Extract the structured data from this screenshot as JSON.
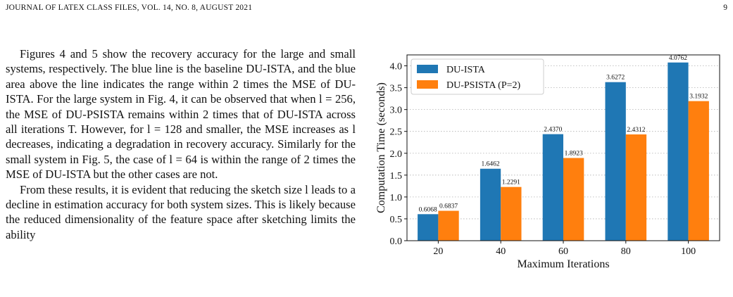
{
  "header": {
    "journal": "JOURNAL OF LATEX CLASS FILES, VOL. 14, NO. 8, AUGUST 2021",
    "page_number": "9"
  },
  "body": {
    "paragraph_1": "Figures 4 and 5 show the recovery accuracy for the large and small systems, respectively. The blue line is the baseline DU-ISTA, and the blue area above the line indicates the range within 2 times the MSE of DU-ISTA. For the large system in Fig. 4, it can be observed that when l = 256, the MSE of DU-PSISTA remains within 2 times that of DU-ISTA across all iterations T. However, for l = 128 and smaller, the MSE increases as l decreases, indicating a degradation in recovery accuracy. Similarly for the small system in Fig. 5, the case of l = 64 is within the range of 2 times the MSE of DU-ISTA but the other cases are not.",
    "paragraph_2": "From these results, it is evident that reducing the sketch size l leads to a decline in estimation accuracy for both system sizes. This is likely because the reduced dimensionality of the feature space after sketching limits the ability"
  },
  "chart_data": {
    "type": "bar",
    "categories": [
      "20",
      "40",
      "60",
      "80",
      "100"
    ],
    "series": [
      {
        "name": "DU-ISTA",
        "values": [
          0.6068,
          1.6462,
          2.437,
          3.6272,
          4.0762
        ],
        "labels": [
          "0.6068",
          "1.6462",
          "2.4370",
          "3.6272",
          "4.0762"
        ],
        "color": "#1f77b4"
      },
      {
        "name": "DU-PSISTA (P=2)",
        "values": [
          0.6837,
          1.2291,
          1.8923,
          2.4312,
          3.1932
        ],
        "labels": [
          "0.6837",
          "1.2291",
          "1.8923",
          "2.4312",
          "3.1932"
        ],
        "color": "#ff7f0e"
      }
    ],
    "xlabel": "Maximum Iterations",
    "ylabel": "Computation Time (seconds)",
    "ylim": [
      0,
      4.25
    ],
    "yticks": [
      "0.0",
      "0.5",
      "1.0",
      "1.5",
      "2.0",
      "2.5",
      "3.0",
      "3.5",
      "4.0"
    ],
    "grid": "horizontal dotted",
    "legend": "top-left"
  }
}
